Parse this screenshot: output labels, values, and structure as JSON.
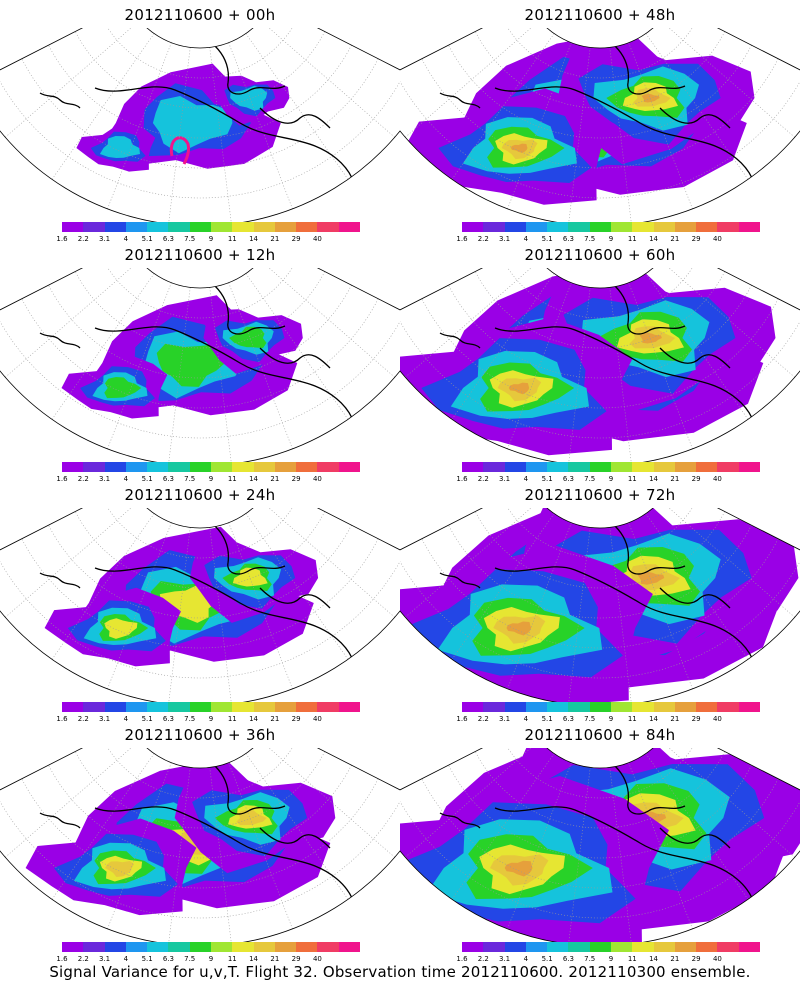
{
  "panels": [
    {
      "title": "2012110600 + 00h",
      "level": 0
    },
    {
      "title": "2012110600 + 48h",
      "level": 4
    },
    {
      "title": "2012110600 + 12h",
      "level": 1
    },
    {
      "title": "2012110600 + 60h",
      "level": 5
    },
    {
      "title": "2012110600 + 24h",
      "level": 2
    },
    {
      "title": "2012110600 + 72h",
      "level": 6
    },
    {
      "title": "2012110600 + 36h",
      "level": 3
    },
    {
      "title": "2012110600 + 84h",
      "level": 7
    }
  ],
  "colorbar": {
    "labels": [
      "1.6",
      "2.2",
      "3.1",
      "4",
      "5.1",
      "6.3",
      "7.5",
      "9",
      "11",
      "14",
      "21",
      "29",
      "40"
    ],
    "colors": [
      "#9a00e6",
      "#6a28dc",
      "#2346e6",
      "#1e96f0",
      "#15c3dc",
      "#16c8a0",
      "#28d228",
      "#a0e632",
      "#e6e632",
      "#e6c83c",
      "#e6a03c",
      "#f06e3c",
      "#f03c64",
      "#f0148c"
    ]
  },
  "caption": "Signal Variance for u,v,T. Flight 32. Observation time 2012110600. 2012110300 ensemble."
}
